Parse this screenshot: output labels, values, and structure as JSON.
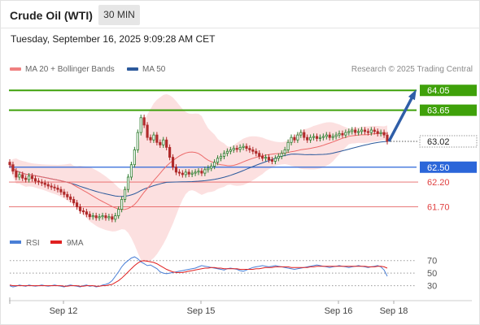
{
  "header": {
    "title": "Crude Oil (WTI)",
    "timeframe": "30 MIN",
    "timestamp": "Tuesday, September 16, 2025 9:09:28 AM CET"
  },
  "legend": {
    "items": [
      {
        "label": "MA 20 + Bollinger Bands",
        "color": "#f08080"
      },
      {
        "label": "MA 50",
        "color": "#2c5a9c"
      }
    ],
    "credit": "Research © 2025 Trading Central"
  },
  "price_levels": [
    {
      "label": "64.05",
      "value": 64.05,
      "kind": "resistance",
      "color": "#3fa10a"
    },
    {
      "label": "63.65",
      "value": 63.65,
      "kind": "resistance",
      "color": "#3fa10a"
    },
    {
      "label": "63.02",
      "value": 63.02,
      "kind": "last_price",
      "color": "#333333"
    },
    {
      "label": "62.50",
      "value": 62.5,
      "kind": "pivot",
      "color": "#2b66d9"
    },
    {
      "label": "62.20",
      "value": 62.2,
      "kind": "support",
      "color": "#e04040"
    },
    {
      "label": "61.70",
      "value": 61.7,
      "kind": "support",
      "color": "#e04040"
    }
  ],
  "rsi_panel": {
    "legend": [
      {
        "label": "RSI",
        "color": "#4a7fd6"
      },
      {
        "label": "9MA",
        "color": "#e02020"
      }
    ],
    "levels": [
      "70",
      "50",
      "30"
    ]
  },
  "x_axis": {
    "labels": [
      "Sep 12",
      "Sep 15",
      "Sep 16",
      "Sep 18"
    ]
  },
  "chart_data": {
    "type": "candlestick",
    "instrument": "Crude Oil (WTI)",
    "interval": "30 MIN",
    "ylim": [
      61.25,
      64.3
    ],
    "closes": [
      62.55,
      62.42,
      62.3,
      62.35,
      62.28,
      62.25,
      62.32,
      62.27,
      62.22,
      62.2,
      62.18,
      62.15,
      62.12,
      62.1,
      62.08,
      62.05,
      62.0,
      61.95,
      61.9,
      61.85,
      61.78,
      61.7,
      61.62,
      61.6,
      61.55,
      61.5,
      61.52,
      61.48,
      61.5,
      61.52,
      61.48,
      61.5,
      61.45,
      61.52,
      61.65,
      61.85,
      62.05,
      62.3,
      62.55,
      62.85,
      63.2,
      63.5,
      63.35,
      63.1,
      63.05,
      63.15,
      63.0,
      62.95,
      63.05,
      62.9,
      62.7,
      62.5,
      62.4,
      62.38,
      62.35,
      62.4,
      62.36,
      62.38,
      62.4,
      62.42,
      62.38,
      62.45,
      62.48,
      62.52,
      62.6,
      62.68,
      62.72,
      62.78,
      62.82,
      62.85,
      62.88,
      62.86,
      62.9,
      62.92,
      62.88,
      62.85,
      62.82,
      62.78,
      62.72,
      62.68,
      62.7,
      62.65,
      62.62,
      62.68,
      62.72,
      62.78,
      62.85,
      63.0,
      63.1,
      63.05,
      63.15,
      63.2,
      63.1,
      63.05,
      63.1,
      63.12,
      63.08,
      63.1,
      63.12,
      63.15,
      63.1,
      63.12,
      63.15,
      63.18,
      63.15,
      63.2,
      63.22,
      63.25,
      63.2,
      63.22,
      63.25,
      63.22,
      63.2,
      63.25,
      63.22,
      63.18,
      63.2,
      63.15,
      63.02
    ],
    "rsi": [
      30,
      28,
      29,
      31,
      30,
      29,
      31,
      30,
      29,
      30,
      31,
      30,
      29,
      30,
      31,
      30,
      29,
      28,
      30,
      31,
      30,
      29,
      28,
      30,
      31,
      29,
      30,
      28,
      29,
      31,
      32,
      34,
      38,
      45,
      52,
      60,
      66,
      70,
      74,
      76,
      73,
      68,
      65,
      62,
      63,
      60,
      57,
      52,
      50,
      49,
      50,
      51,
      52,
      53,
      54,
      55,
      56,
      57,
      58,
      60,
      62,
      61,
      60,
      59,
      58,
      57,
      56,
      55,
      57,
      58,
      57,
      56,
      54,
      53,
      55,
      57,
      59,
      60,
      61,
      62,
      61,
      60,
      61,
      62,
      61,
      60,
      59,
      58,
      57,
      56,
      57,
      58,
      59,
      60,
      61,
      62,
      63,
      62,
      61,
      60,
      59,
      60,
      61,
      62,
      61,
      60,
      59,
      60,
      61,
      62,
      61,
      60,
      59,
      60,
      61,
      62,
      60,
      55,
      45
    ],
    "rsi_ma9": [
      31,
      30,
      30,
      30,
      30,
      30,
      30,
      30,
      30,
      30,
      30,
      30,
      30,
      30,
      30,
      30,
      30,
      29,
      29,
      30,
      30,
      30,
      29,
      29,
      30,
      30,
      30,
      29,
      29,
      30,
      30,
      31,
      32,
      35,
      38,
      42,
      47,
      52,
      57,
      62,
      66,
      69,
      70,
      69,
      68,
      67,
      65,
      62,
      59,
      56,
      54,
      52,
      51,
      51,
      51,
      52,
      53,
      54,
      55,
      56,
      57,
      58,
      58,
      59,
      59,
      58,
      58,
      57,
      57,
      57,
      57,
      57,
      56,
      56,
      56,
      56,
      56,
      57,
      57,
      58,
      59,
      59,
      59,
      60,
      60,
      60,
      60,
      60,
      59,
      59,
      59,
      59,
      59,
      59,
      60,
      60,
      61,
      61,
      61,
      61,
      61,
      61,
      61,
      61,
      61,
      61,
      61,
      61,
      61,
      61,
      61,
      61,
      60,
      60,
      60,
      61,
      61,
      60,
      58
    ]
  }
}
